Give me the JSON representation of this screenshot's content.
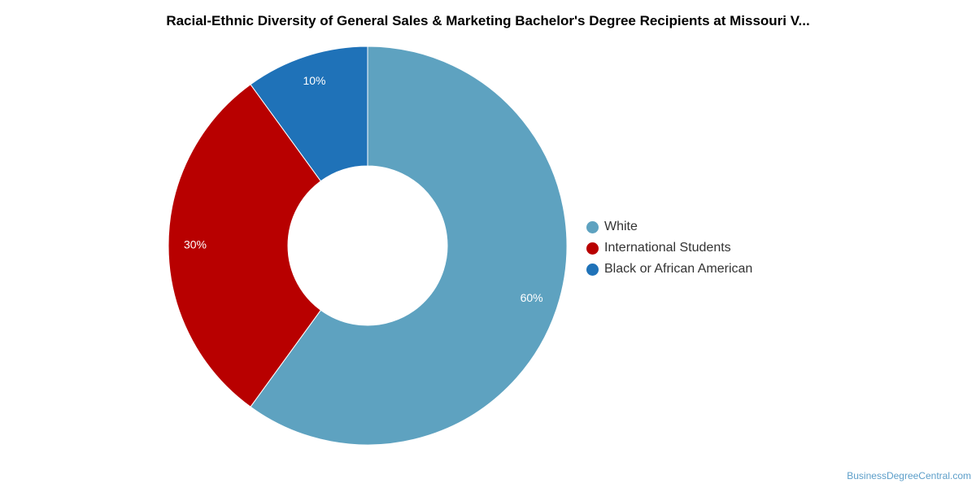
{
  "chart_data": {
    "type": "pie",
    "title": "Racial-Ethnic Diversity of General Sales & Marketing Bachelor's Degree Recipients at Missouri V...",
    "categories": [
      "White",
      "International Students",
      "Black or African American"
    ],
    "values": [
      60,
      30,
      10
    ],
    "value_labels": [
      "60%",
      "30%",
      "10%"
    ],
    "colors": [
      "#5ea2c0",
      "#b80000",
      "#1f72b8"
    ],
    "donut": true,
    "legend_position": "right"
  },
  "watermark": "BusinessDegreeCentral.com"
}
